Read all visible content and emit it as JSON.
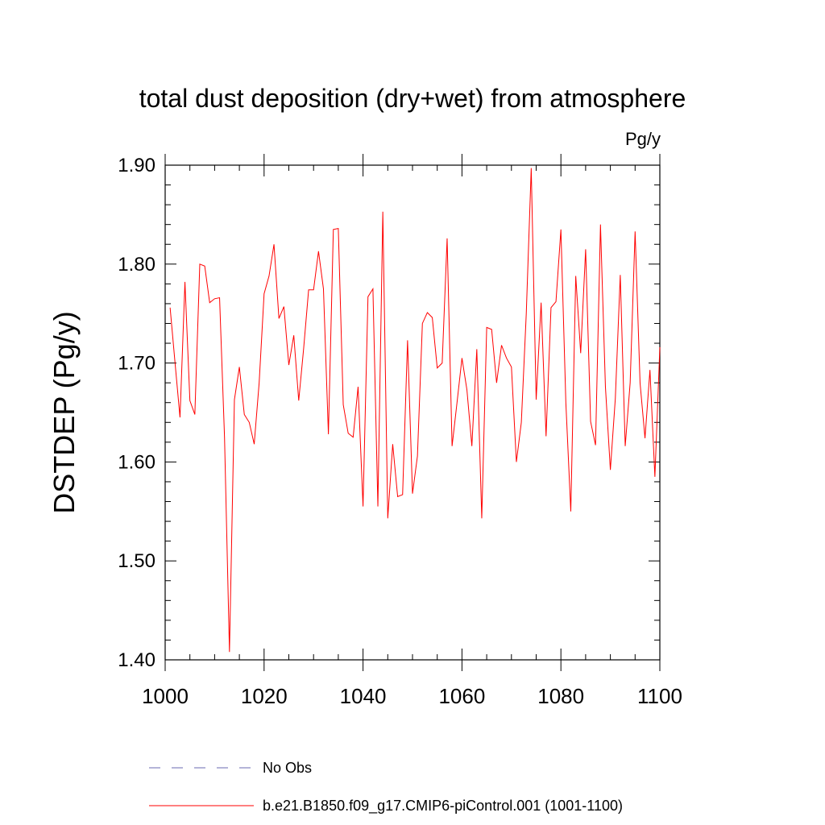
{
  "chart_data": {
    "type": "line",
    "title": "total dust deposition (dry+wet) from atmosphere",
    "units": "Pg/y",
    "ylabel": "DSTDEP  (Pg/y)",
    "xlabel": "",
    "xlim": [
      1000,
      1100
    ],
    "ylim": [
      1.4,
      1.9
    ],
    "x_ticks": [
      1000,
      1020,
      1040,
      1060,
      1080,
      1100
    ],
    "y_ticks": [
      1.4,
      1.5,
      1.6,
      1.7,
      1.8,
      1.9
    ],
    "x_tick_labels": [
      "1000",
      "1020",
      "1040",
      "1060",
      "1080",
      "1100"
    ],
    "y_tick_labels": [
      "1.40",
      "1.50",
      "1.60",
      "1.70",
      "1.80",
      "1.90"
    ],
    "series": [
      {
        "name": "b.e21.B1850.f09_g17.CMIP6-piControl.001 (1001-1100)",
        "color": "#ff0000",
        "x_start": 1001,
        "values": [
          1.756,
          1.7,
          1.645,
          1.782,
          1.662,
          1.648,
          1.8,
          1.798,
          1.761,
          1.765,
          1.766,
          1.625,
          1.408,
          1.663,
          1.696,
          1.648,
          1.64,
          1.618,
          1.68,
          1.77,
          1.788,
          1.82,
          1.745,
          1.757,
          1.698,
          1.728,
          1.662,
          1.715,
          1.774,
          1.774,
          1.813,
          1.775,
          1.628,
          1.835,
          1.836,
          1.658,
          1.629,
          1.625,
          1.676,
          1.555,
          1.767,
          1.775,
          1.555,
          1.853,
          1.543,
          1.618,
          1.565,
          1.567,
          1.723,
          1.568,
          1.606,
          1.74,
          1.751,
          1.746,
          1.695,
          1.7,
          1.826,
          1.616,
          1.66,
          1.705,
          1.673,
          1.616,
          1.714,
          1.543,
          1.736,
          1.734,
          1.68,
          1.718,
          1.705,
          1.696,
          1.6,
          1.64,
          1.75,
          1.897,
          1.663,
          1.761,
          1.626,
          1.756,
          1.762,
          1.835,
          1.66,
          1.55,
          1.788,
          1.71,
          1.815,
          1.641,
          1.617,
          1.84,
          1.676,
          1.592,
          1.664,
          1.789,
          1.616,
          1.68,
          1.833,
          1.68,
          1.624,
          1.693,
          1.585,
          1.716
        ]
      },
      {
        "name": "No Obs",
        "color": "#6a6ab0",
        "style": "dashed",
        "values": []
      }
    ],
    "legend": {
      "placement": "bottom-left",
      "entries": [
        "No Obs",
        "b.e21.B1850.f09_g17.CMIP6-piControl.001 (1001-1100)"
      ]
    }
  }
}
